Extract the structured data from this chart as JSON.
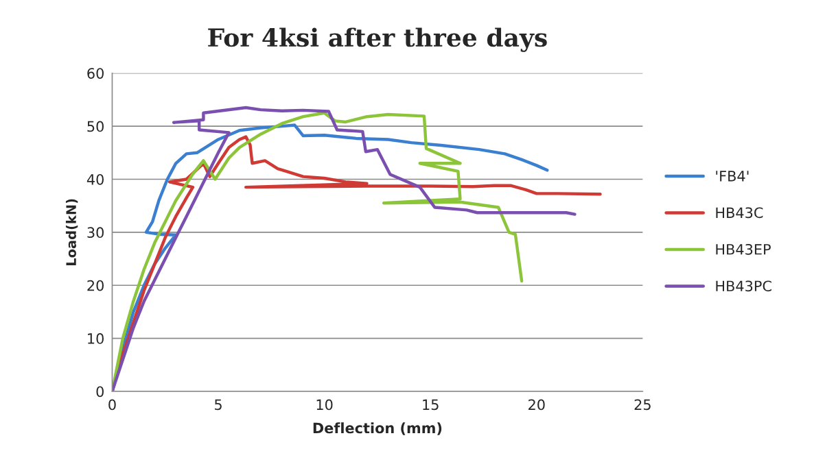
{
  "chart_data": {
    "type": "line",
    "title": "For 4ksi after three days",
    "xlabel": "Deflection (mm)",
    "ylabel": "Load(kN)",
    "xlim": [
      0,
      25
    ],
    "xticks": [
      0,
      5,
      10,
      15,
      20,
      25
    ],
    "ylim": [
      0,
      60
    ],
    "yticks": [
      0,
      10,
      20,
      30,
      40,
      50,
      60
    ],
    "grid": "y",
    "legend": "right",
    "marker": "none",
    "line_style": "solid",
    "series": [
      {
        "name": "'FB4'",
        "color": "#3a7fd0",
        "x": [
          0,
          0.5,
          1,
          1.5,
          2,
          2.5,
          3,
          2.3,
          1.6,
          1.9,
          2.2,
          2.6,
          3,
          3.5,
          4,
          5,
          6,
          7,
          8,
          8.6,
          9,
          10,
          11.5,
          13,
          14.1,
          15.5,
          17.3,
          18.5,
          19.3,
          20,
          20.5
        ],
        "values": [
          0,
          8,
          15,
          20,
          24,
          27,
          29.5,
          29.6,
          30,
          32,
          36,
          40,
          43,
          44.8,
          45,
          47.5,
          49.2,
          49.7,
          50,
          50.2,
          48.2,
          48.3,
          47.7,
          47.5,
          46.9,
          46.4,
          45.6,
          44.8,
          43.7,
          42.6,
          41.7
        ]
      },
      {
        "name": "HB43C",
        "color": "#d03a35",
        "x": [
          0,
          0.5,
          1,
          1.5,
          2,
          2.5,
          3,
          3.5,
          3.8,
          2.7,
          3.5,
          4.3,
          4.6,
          5,
          5.5,
          6,
          6.3,
          6.5,
          6.6,
          7.2,
          7.8,
          8.2,
          9,
          10,
          11,
          12,
          6.3,
          9,
          12,
          15,
          17,
          18,
          18.8,
          19.5,
          20,
          21,
          23
        ],
        "values": [
          0,
          7,
          13,
          19,
          24,
          29,
          33,
          36.5,
          38.5,
          39.5,
          40,
          43,
          40.5,
          43,
          46,
          47.5,
          48,
          46.5,
          43,
          43.5,
          42,
          41.5,
          40.5,
          40.2,
          39.5,
          39.2,
          38.5,
          38.6,
          38.7,
          38.7,
          38.6,
          38.8,
          38.8,
          38,
          37.3,
          37.3,
          37.2
        ]
      },
      {
        "name": "HB43EP",
        "color": "#8cc43a",
        "x": [
          0,
          0.5,
          1,
          1.5,
          2,
          2.5,
          3,
          3.8,
          4.3,
          4.85,
          5.5,
          6,
          7,
          8,
          9,
          10,
          10.5,
          11,
          12,
          13,
          14.7,
          14.8,
          16.4,
          14.5,
          16.3,
          16.4,
          12.8,
          16.4,
          18.2,
          18.7,
          19,
          19.3
        ],
        "values": [
          0,
          10,
          17,
          23,
          28,
          32,
          36,
          41,
          43.5,
          40,
          44,
          46,
          48.5,
          50.5,
          51.8,
          52.5,
          51,
          50.8,
          51.8,
          52.2,
          51.9,
          45.8,
          43,
          43,
          41.5,
          36.3,
          35.5,
          35.7,
          34.7,
          30,
          29.6,
          20.8
        ]
      },
      {
        "name": "HB43PC",
        "color": "#7a4fb0",
        "x": [
          0,
          0.5,
          1,
          1.5,
          2,
          2.5,
          3,
          3.5,
          4,
          4.5,
          5,
          5.5,
          4.1,
          4.1,
          2.9,
          4.3,
          4.3,
          6.3,
          7,
          8,
          9,
          10.2,
          10.6,
          11.8,
          11.95,
          12.5,
          13.1,
          14.5,
          15.2,
          16.7,
          17.2,
          21.4,
          21.8
        ],
        "values": [
          0,
          6,
          12,
          17,
          21,
          25,
          29,
          33,
          37,
          41,
          45,
          48.8,
          49.3,
          51,
          50.7,
          51.2,
          52.5,
          53.5,
          53.1,
          52.9,
          53,
          52.8,
          49.3,
          49,
          45.2,
          45.6,
          40.9,
          38.5,
          34.7,
          34.2,
          33.7,
          33.7,
          33.4
        ]
      }
    ]
  }
}
